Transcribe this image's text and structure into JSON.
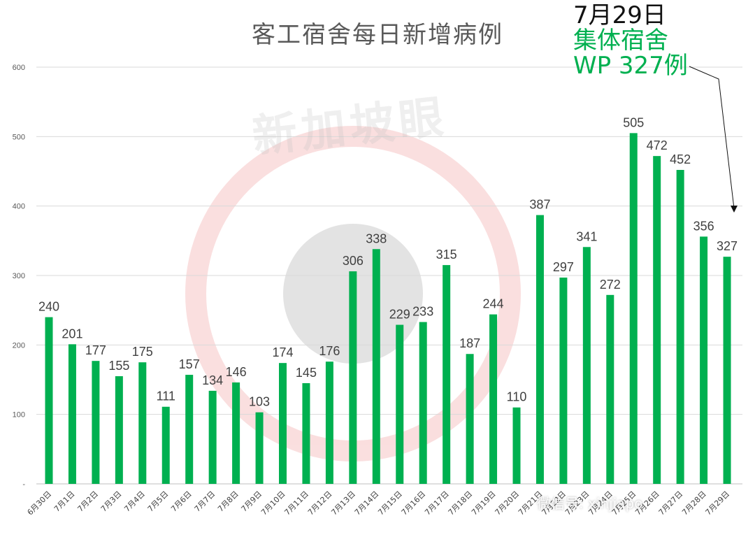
{
  "chart_data": {
    "type": "bar",
    "title": "客工宿舍每日新增病例",
    "categories": [
      "6月30日",
      "7月1日",
      "7月2日",
      "7月3日",
      "7月4日",
      "7月5日",
      "7月6日",
      "7月7日",
      "7月8日",
      "7月9日",
      "7月10日",
      "7月11日",
      "7月12日",
      "7月13日",
      "7月14日",
      "7月15日",
      "7月16日",
      "7月17日",
      "7月18日",
      "7月19日",
      "7月20日",
      "7月21日",
      "7月22日",
      "7月23日",
      "7月24日",
      "7月25日",
      "7月26日",
      "7月27日",
      "7月28日",
      "7月29日"
    ],
    "values": [
      240,
      201,
      177,
      155,
      175,
      111,
      157,
      134,
      146,
      103,
      174,
      145,
      176,
      306,
      338,
      229,
      233,
      315,
      187,
      244,
      110,
      387,
      297,
      341,
      272,
      505,
      472,
      452,
      356,
      327
    ],
    "ylim": [
      0,
      600
    ],
    "yticks": [
      0,
      100,
      200,
      300,
      400,
      500,
      600
    ],
    "ytick_labels": [
      "-",
      "100",
      "200",
      "300",
      "400",
      "500",
      "600"
    ],
    "grid": true,
    "bar_color": "#00B050"
  },
  "annotation": {
    "date": "7月29日",
    "line1": "集体宿舍",
    "line2": "WP 327例"
  },
  "watermark": {
    "brand": "新加坡眼",
    "wechat": "微信号: xinjiapo"
  }
}
